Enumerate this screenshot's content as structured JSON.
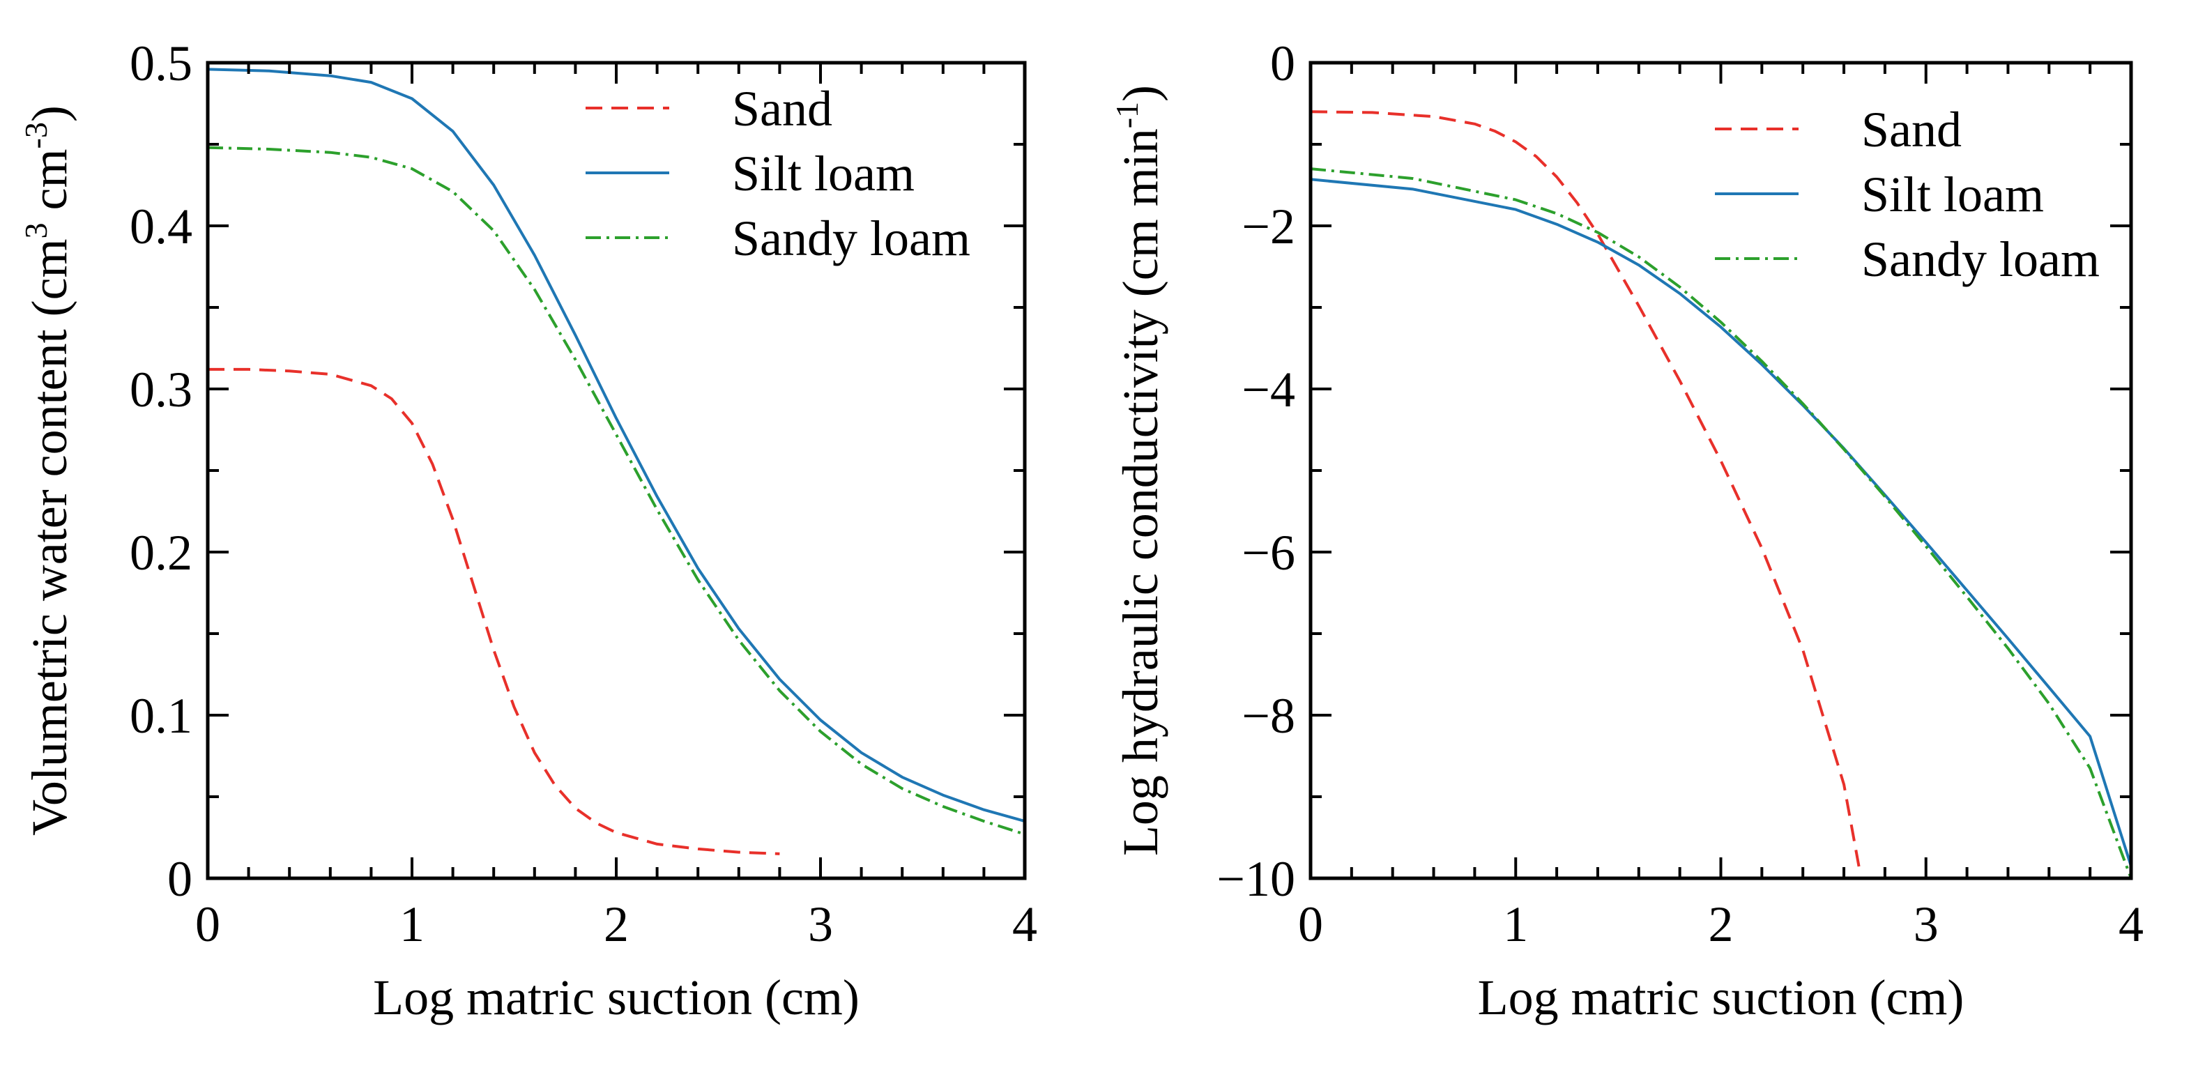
{
  "chart_data": [
    {
      "id": "left",
      "type": "line",
      "title": "",
      "xlabel": "Log matric suction (cm)",
      "ylabel_parts": [
        "Volumetric water content (cm",
        "3",
        " cm",
        "-3",
        ")"
      ],
      "xlim": [
        0,
        4
      ],
      "ylim": [
        0,
        0.5
      ],
      "xticks": [
        0,
        1,
        2,
        3,
        4
      ],
      "xtick_labels": [
        "0",
        "1",
        "2",
        "3",
        "4"
      ],
      "yticks": [
        0,
        0.1,
        0.2,
        0.3,
        0.4,
        0.5
      ],
      "ytick_labels": [
        "0",
        "0.1",
        "0.2",
        "0.3",
        "0.4",
        "0.5"
      ],
      "legend_position": "top-right",
      "grid": false,
      "series": [
        {
          "name": "Sand",
          "color": "#e8302a",
          "dash": "dashed",
          "x": [
            0,
            0.2,
            0.4,
            0.6,
            0.8,
            0.9,
            1.0,
            1.1,
            1.2,
            1.3,
            1.4,
            1.5,
            1.6,
            1.7,
            1.8,
            1.9,
            2.0,
            2.2,
            2.4,
            2.6,
            2.8
          ],
          "y": [
            0.312,
            0.312,
            0.311,
            0.309,
            0.302,
            0.294,
            0.279,
            0.254,
            0.22,
            0.18,
            0.14,
            0.105,
            0.077,
            0.057,
            0.043,
            0.034,
            0.028,
            0.021,
            0.018,
            0.016,
            0.015
          ]
        },
        {
          "name": "Silt loam",
          "color": "#1f77b4",
          "dash": "solid",
          "x": [
            0,
            0.3,
            0.6,
            0.8,
            1.0,
            1.2,
            1.4,
            1.6,
            1.8,
            2.0,
            2.2,
            2.4,
            2.6,
            2.8,
            3.0,
            3.2,
            3.4,
            3.6,
            3.8,
            4.0
          ],
          "y": [
            0.496,
            0.495,
            0.492,
            0.488,
            0.478,
            0.458,
            0.425,
            0.382,
            0.333,
            0.282,
            0.234,
            0.19,
            0.153,
            0.122,
            0.097,
            0.077,
            0.062,
            0.051,
            0.042,
            0.035
          ]
        },
        {
          "name": "Sandy loam",
          "color": "#2ca02c",
          "dash": "dashdot",
          "x": [
            0,
            0.3,
            0.6,
            0.8,
            1.0,
            1.2,
            1.4,
            1.6,
            1.8,
            2.0,
            2.2,
            2.4,
            2.6,
            2.8,
            3.0,
            3.2,
            3.4,
            3.6,
            3.8,
            4.0
          ],
          "y": [
            0.448,
            0.447,
            0.445,
            0.442,
            0.435,
            0.421,
            0.397,
            0.361,
            0.318,
            0.272,
            0.226,
            0.183,
            0.146,
            0.115,
            0.09,
            0.07,
            0.055,
            0.044,
            0.035,
            0.027
          ]
        }
      ]
    },
    {
      "id": "right",
      "type": "line",
      "title": "",
      "xlabel": "Log matric suction (cm)",
      "ylabel_parts": [
        "Log hydraulic conductivity (cm min",
        "-1",
        ")"
      ],
      "xlim": [
        0,
        4
      ],
      "ylim": [
        -10,
        0
      ],
      "xticks": [
        0,
        1,
        2,
        3,
        4
      ],
      "xtick_labels": [
        "0",
        "1",
        "2",
        "3",
        "4"
      ],
      "yticks": [
        0,
        -2,
        -4,
        -6,
        -8,
        -10
      ],
      "ytick_labels": [
        "0",
        "−2",
        "−4",
        "−6",
        "−8",
        "−10"
      ],
      "legend_position": "top-right",
      "grid": false,
      "series": [
        {
          "name": "Sand",
          "color": "#e8302a",
          "dash": "dashed",
          "x": [
            0,
            0.3,
            0.6,
            0.8,
            0.9,
            1.0,
            1.1,
            1.2,
            1.3,
            1.4,
            1.6,
            1.8,
            2.0,
            2.2,
            2.4,
            2.6,
            2.68
          ],
          "y": [
            -0.6,
            -0.61,
            -0.66,
            -0.75,
            -0.84,
            -0.97,
            -1.15,
            -1.4,
            -1.72,
            -2.1,
            -2.98,
            -3.9,
            -4.88,
            -5.95,
            -7.2,
            -8.85,
            -9.95
          ]
        },
        {
          "name": "Silt loam",
          "color": "#1f77b4",
          "dash": "solid",
          "x": [
            0,
            0.5,
            1.0,
            1.2,
            1.4,
            1.6,
            1.8,
            2.0,
            2.2,
            2.4,
            2.6,
            2.8,
            3.0,
            3.2,
            3.4,
            3.6,
            3.8,
            4.0
          ],
          "y": [
            -1.43,
            -1.55,
            -1.8,
            -1.98,
            -2.2,
            -2.48,
            -2.83,
            -3.24,
            -3.7,
            -4.2,
            -4.73,
            -5.3,
            -5.88,
            -6.47,
            -7.06,
            -7.66,
            -8.26,
            -9.85
          ]
        },
        {
          "name": "Sandy loam",
          "color": "#2ca02c",
          "dash": "dashdot",
          "x": [
            0,
            0.5,
            1.0,
            1.2,
            1.4,
            1.6,
            1.8,
            2.0,
            2.2,
            2.4,
            2.6,
            2.8,
            3.0,
            3.2,
            3.4,
            3.6,
            3.8,
            4.0
          ],
          "y": [
            -1.3,
            -1.42,
            -1.68,
            -1.85,
            -2.08,
            -2.38,
            -2.75,
            -3.18,
            -3.66,
            -4.18,
            -4.74,
            -5.32,
            -5.93,
            -6.55,
            -7.18,
            -7.86,
            -8.65,
            -10.0
          ]
        }
      ]
    }
  ]
}
